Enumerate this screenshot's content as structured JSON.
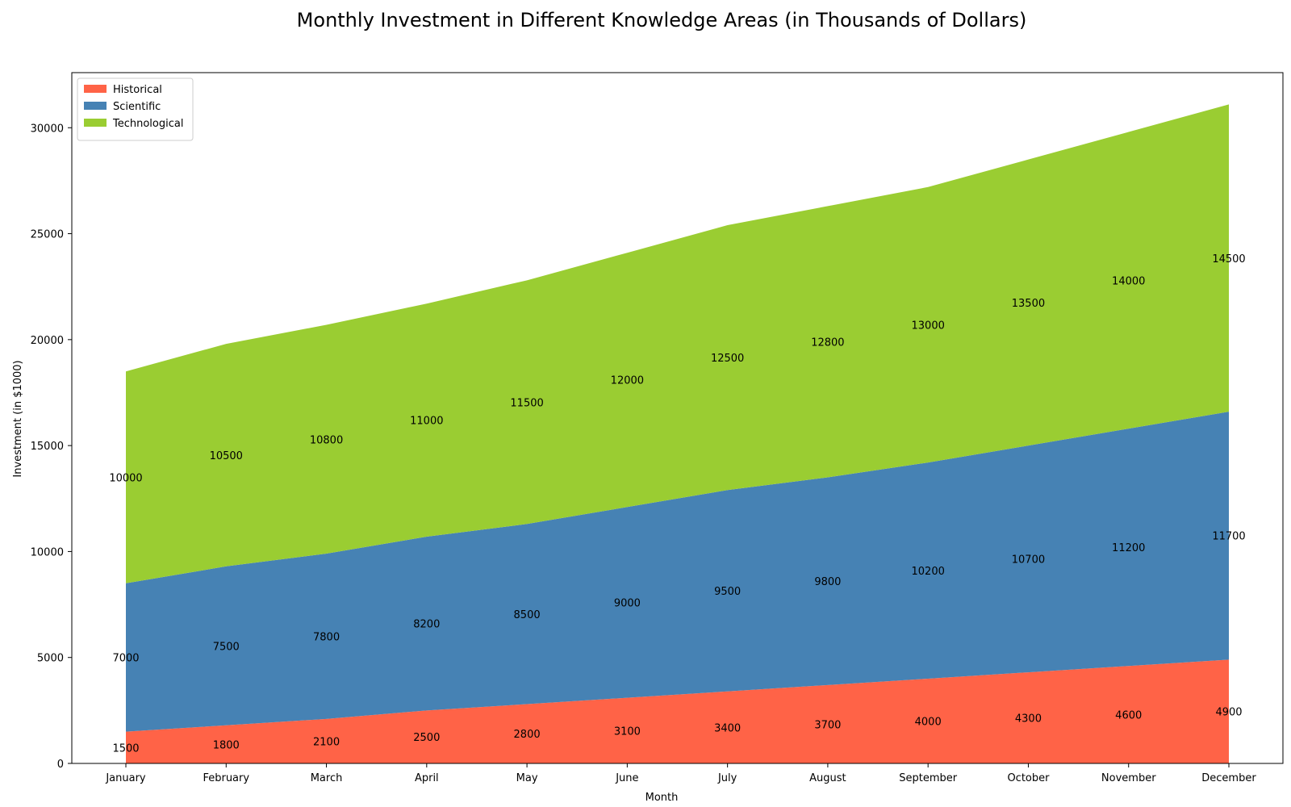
{
  "chart_data": {
    "type": "area",
    "stacked": true,
    "title": "Monthly Investment in Different Knowledge Areas (in Thousands of Dollars)",
    "xlabel": "Month",
    "ylabel": "Investment (in $1000)",
    "categories": [
      "January",
      "February",
      "March",
      "April",
      "May",
      "June",
      "July",
      "August",
      "September",
      "October",
      "November",
      "December"
    ],
    "series": [
      {
        "name": "Historical",
        "color": "#ff6347",
        "values": [
          1500,
          1800,
          2100,
          2500,
          2800,
          3100,
          3400,
          3700,
          4000,
          4300,
          4600,
          4900
        ]
      },
      {
        "name": "Scientific",
        "color": "#4682b4",
        "values": [
          7000,
          7500,
          7800,
          8200,
          8500,
          9000,
          9500,
          9800,
          10200,
          10700,
          11200,
          11700
        ]
      },
      {
        "name": "Technological",
        "color": "#9acd32",
        "values": [
          10000,
          10500,
          10800,
          11000,
          11500,
          12000,
          12500,
          12800,
          13000,
          13500,
          14000,
          14500
        ]
      }
    ],
    "ylim": [
      0,
      32600
    ],
    "yticks": [
      0,
      5000,
      10000,
      15000,
      20000,
      25000,
      30000
    ],
    "grid": false,
    "legend_position": "top-left"
  }
}
